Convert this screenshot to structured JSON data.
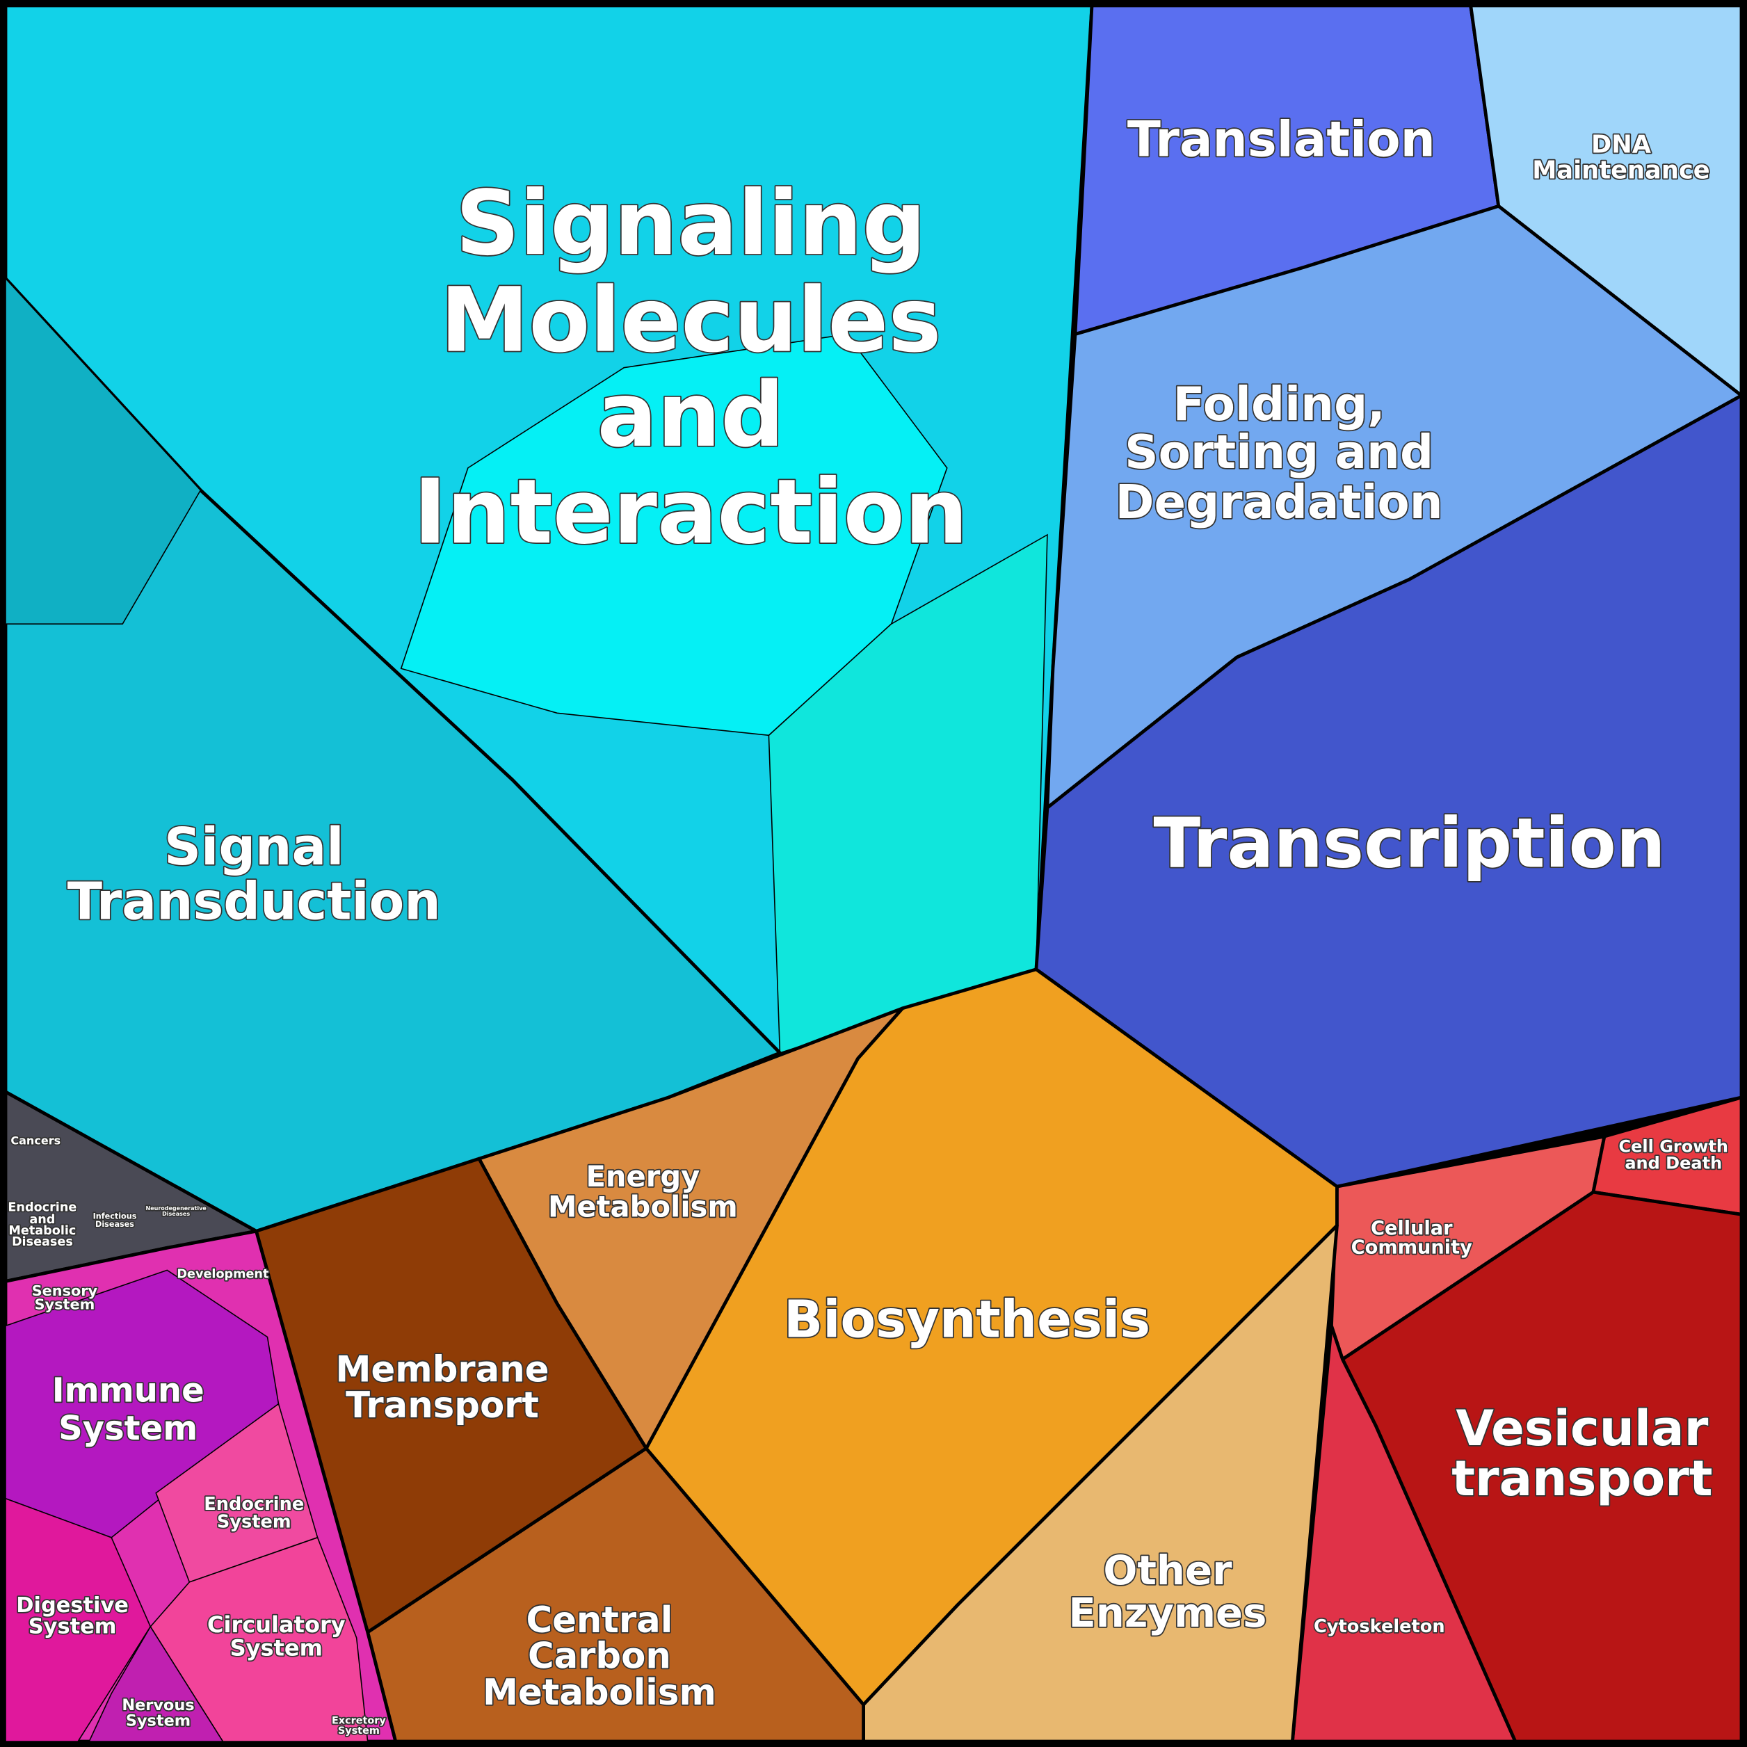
{
  "labels": [
    {
      "lines": [
        "Signaling",
        "Molecules",
        "and",
        "Interaction"
      ]
    },
    {
      "lines": [
        "Translation"
      ]
    },
    {
      "lines": [
        "DNA",
        "Maintenance"
      ]
    },
    {
      "lines": [
        "Folding,",
        "Sorting and",
        "Degradation"
      ]
    },
    {
      "lines": [
        "Transcription"
      ]
    },
    {
      "lines": [
        "Signal",
        "Transduction"
      ]
    },
    {
      "lines": [
        "Energy",
        "Metabolism"
      ]
    },
    {
      "lines": [
        "Biosynthesis"
      ]
    },
    {
      "lines": [
        "Membrane",
        "Transport"
      ]
    },
    {
      "lines": [
        "Central",
        "Carbon",
        "Metabolism"
      ]
    },
    {
      "lines": [
        "Other",
        "Enzymes"
      ]
    },
    {
      "lines": [
        "Vesicular",
        "transport"
      ]
    },
    {
      "lines": [
        "Cellular",
        "Community"
      ]
    },
    {
      "lines": [
        "Cell Growth",
        "and Death"
      ]
    },
    {
      "lines": [
        "Cytoskeleton"
      ]
    },
    {
      "lines": [
        "Cancers"
      ]
    },
    {
      "lines": [
        "Endocrine",
        "and",
        "Metabolic",
        "Diseases"
      ]
    },
    {
      "lines": [
        "Infectious",
        "Diseases"
      ]
    },
    {
      "lines": [
        "Neurodegenerative",
        "Diseases"
      ]
    },
    {
      "lines": [
        "Sensory",
        "System"
      ]
    },
    {
      "lines": [
        "Development"
      ]
    },
    {
      "lines": [
        "Immune",
        "System"
      ]
    },
    {
      "lines": [
        "Endocrine",
        "System"
      ]
    },
    {
      "lines": [
        "Digestive",
        "System"
      ]
    },
    {
      "lines": [
        "Circulatory",
        "System"
      ]
    },
    {
      "lines": [
        "Nervous",
        "System"
      ]
    },
    {
      "lines": [
        "Excretory",
        "System"
      ]
    }
  ]
}
